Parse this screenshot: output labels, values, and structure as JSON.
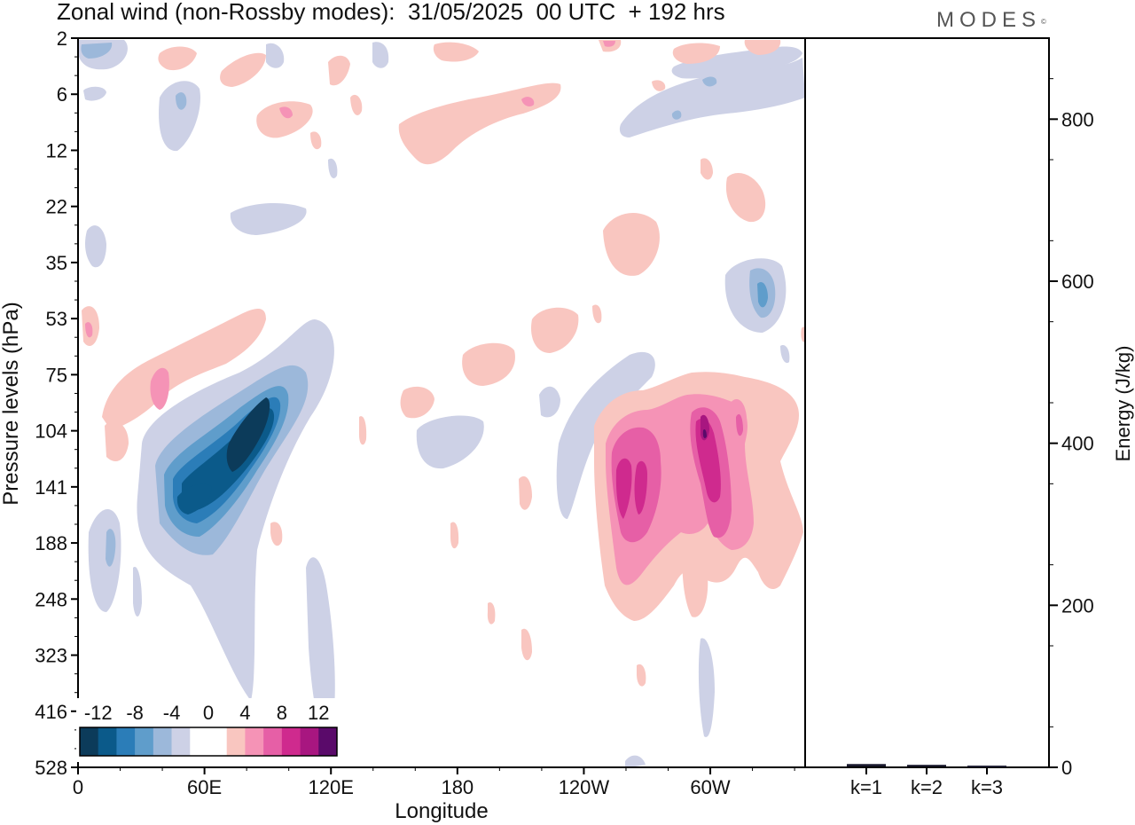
{
  "header": {
    "title": "Zonal wind (non-Rossby modes):  31/05/2025  00 UTC  + 192 hrs",
    "logo": "MODES",
    "logo_mark": "©"
  },
  "chart_data": [
    {
      "type": "heatmap",
      "title": "Zonal wind (non-Rossby modes):  31/05/2025  00 UTC  + 192 hrs",
      "xlabel": "Longitude",
      "ylabel": "Pressure levels (hPa)",
      "x_ticks": [
        "0",
        "60E",
        "120E",
        "180",
        "120W",
        "60W"
      ],
      "x_range_deg": [
        0,
        345
      ],
      "y_ticks": [
        "2",
        "6",
        "12",
        "22",
        "35",
        "53",
        "75",
        "104",
        "141",
        "188",
        "248",
        "323",
        "416",
        "528"
      ],
      "y_scale": "level-index (pressure increasing downward)",
      "colorbar": {
        "labels": [
          "-12",
          "-8",
          "-4",
          "0",
          "4",
          "8",
          "12"
        ],
        "levels": [
          -14,
          -12,
          -10,
          -8,
          -6,
          -4,
          -2,
          0,
          2,
          4,
          6,
          8,
          10,
          12,
          14
        ],
        "colors": [
          "#0c3b5a",
          "#0b5a8a",
          "#2b7db8",
          "#5f9dcb",
          "#9cb8da",
          "#cdd1e6",
          "#ffffff",
          "#ffffff",
          "#f9c6c0",
          "#f593b6",
          "#e65fa6",
          "#cf2a8e",
          "#a81680",
          "#5a0a6a"
        ],
        "placement": "bottom-left inset"
      },
      "features": [
        {
          "sign": "negative",
          "label": "easterly jet",
          "lon_deg": [
            40,
            100
          ],
          "level_range": [
            "75",
            "248"
          ],
          "min_value": -14
        },
        {
          "sign": "positive",
          "label": "westerly maxima",
          "lon_deg": [
            245,
            315
          ],
          "level_range": [
            "75",
            "323"
          ],
          "max_value": 14
        },
        {
          "sign": "positive",
          "label": "lower stratosphere band",
          "lon_deg": [
            10,
            90
          ],
          "level_range": [
            "53",
            "104"
          ],
          "max_value": 6
        },
        {
          "sign": "negative",
          "label": "upper level band",
          "lon_deg": [
            260,
            345
          ],
          "level_range": [
            "2",
            "12"
          ],
          "min_value": -4
        },
        {
          "sign": "positive",
          "label": "upper level band",
          "lon_deg": [
            150,
            230
          ],
          "level_range": [
            "6",
            "12"
          ],
          "max_value": 4
        }
      ]
    },
    {
      "type": "bar",
      "xlabel": "",
      "ylabel": "Energy (J/kg)",
      "categories": [
        "k=1",
        "k=2",
        "k=3"
      ],
      "values": [
        3,
        2,
        1
      ],
      "ylim": [
        0,
        900
      ],
      "y_ticks": [
        "0",
        "200",
        "400",
        "600",
        "800"
      ],
      "axis_side": "right",
      "bar_color": "#1a1a2e"
    }
  ]
}
